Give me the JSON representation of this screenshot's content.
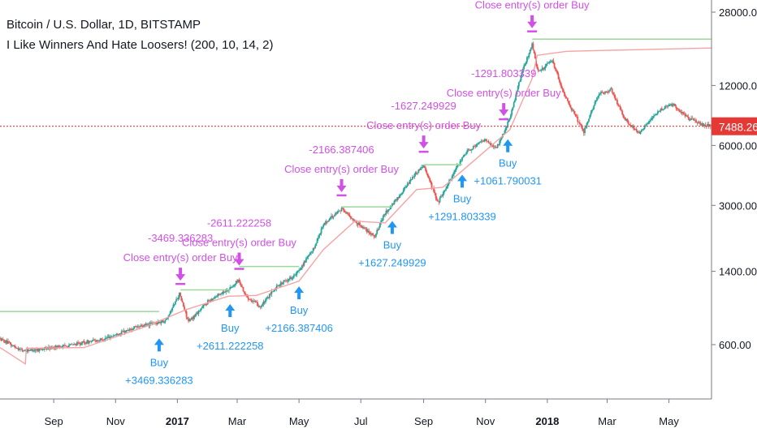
{
  "chart_data": {
    "type": "candlestick",
    "title": "Bitcoin / U.S. Dollar, 1D, BITSTAMP",
    "indicator": "I Like Winners And Hate Loosers! (200, 10, 14, 2)",
    "y_axis": {
      "scale": "log",
      "ticks": [
        "28000.00",
        "12000.00",
        "6000.00",
        "3000.00",
        "1400.00",
        "600.00"
      ],
      "tick_values": [
        28000,
        12000,
        6000,
        3000,
        1400,
        600
      ]
    },
    "x_axis": {
      "ticks": [
        "Sep",
        "Nov",
        "2017",
        "Mar",
        "May",
        "Jul",
        "Sep",
        "Nov",
        "2018",
        "Mar",
        "May"
      ],
      "bold_ticks": [
        "2017",
        "2018"
      ],
      "range": [
        "2016-07-10",
        "2018-06-12"
      ],
      "tick_dates": [
        "2016-09-01",
        "2016-11-01",
        "2017-01-01",
        "2017-03-01",
        "2017-05-01",
        "2017-07-01",
        "2017-09-01",
        "2017-11-01",
        "2018-01-01",
        "2018-03-01",
        "2018-05-01"
      ]
    },
    "price_line": {
      "value": 7488.26,
      "label": "7488.26"
    },
    "price_path": [
      [
        "2016-07-10",
        640
      ],
      [
        "2016-08-01",
        560
      ],
      [
        "2016-08-20",
        570
      ],
      [
        "2016-09-20",
        600
      ],
      [
        "2016-10-20",
        640
      ],
      [
        "2016-11-20",
        730
      ],
      [
        "2016-12-20",
        790
      ],
      [
        "2017-01-03",
        1080
      ],
      [
        "2017-01-12",
        780
      ],
      [
        "2017-02-01",
        1000
      ],
      [
        "2017-02-25",
        1180
      ],
      [
        "2017-03-02",
        1270
      ],
      [
        "2017-03-10",
        1050
      ],
      [
        "2017-03-24",
        930
      ],
      [
        "2017-04-10",
        1190
      ],
      [
        "2017-04-28",
        1350
      ],
      [
        "2017-05-15",
        1800
      ],
      [
        "2017-05-25",
        2400
      ],
      [
        "2017-06-12",
        2900
      ],
      [
        "2017-06-25",
        2500
      ],
      [
        "2017-07-15",
        2100
      ],
      [
        "2017-07-24",
        2700
      ],
      [
        "2017-08-05",
        3200
      ],
      [
        "2017-08-20",
        4100
      ],
      [
        "2017-09-01",
        4800
      ],
      [
        "2017-09-15",
        3100
      ],
      [
        "2017-09-30",
        4300
      ],
      [
        "2017-10-13",
        5600
      ],
      [
        "2017-10-31",
        6400
      ],
      [
        "2017-11-12",
        5800
      ],
      [
        "2017-11-25",
        8200
      ],
      [
        "2017-12-07",
        14000
      ],
      [
        "2017-12-17",
        19300
      ],
      [
        "2017-12-23",
        14000
      ],
      [
        "2018-01-06",
        16000
      ],
      [
        "2018-01-17",
        11000
      ],
      [
        "2018-02-06",
        7000
      ],
      [
        "2018-02-20",
        10800
      ],
      [
        "2018-03-05",
        11400
      ],
      [
        "2018-03-18",
        8200
      ],
      [
        "2018-04-01",
        6900
      ],
      [
        "2018-04-24",
        9200
      ],
      [
        "2018-05-05",
        9700
      ],
      [
        "2018-05-20",
        8200
      ],
      [
        "2018-06-05",
        7600
      ],
      [
        "2018-06-12",
        7488
      ]
    ],
    "support_line": [
      [
        "2016-07-10",
        580
      ],
      [
        "2016-08-04",
        480
      ],
      [
        "2016-08-05",
        575
      ],
      [
        "2016-10-01",
        580
      ],
      [
        "2016-12-01",
        740
      ],
      [
        "2017-01-10",
        900
      ],
      [
        "2017-02-20",
        1050
      ],
      [
        "2017-03-20",
        1060
      ],
      [
        "2017-05-01",
        1250
      ],
      [
        "2017-05-25",
        1800
      ],
      [
        "2017-06-25",
        2500
      ],
      [
        "2017-07-25",
        2450
      ],
      [
        "2017-08-25",
        3600
      ],
      [
        "2017-09-20",
        3700
      ],
      [
        "2017-10-20",
        5000
      ],
      [
        "2017-11-25",
        7200
      ],
      [
        "2017-12-17",
        13000
      ],
      [
        "2017-12-22",
        17000
      ],
      [
        "2018-01-20",
        17800
      ],
      [
        "2018-03-01",
        18000
      ],
      [
        "2018-06-12",
        18500
      ]
    ],
    "series": [
      {
        "name": "Buy",
        "x": [
          "2016-12-14",
          "2017-02-22",
          "2017-05-01",
          "2017-08-01",
          "2017-10-09",
          "2017-11-23"
        ],
        "values": [
          "+3469.336283",
          "+2611.222258",
          "+2166.387406",
          "+1627.249929",
          "+1291.803339",
          "+1061.790031"
        ]
      },
      {
        "name": "Close entry(s) order Buy",
        "x": [
          "2017-01-04",
          "2017-03-03",
          "2017-06-12",
          "2017-09-01",
          "2017-11-19",
          "2017-12-17"
        ],
        "values": [
          "-3469.336283",
          "-2611.222258",
          "-2166.387406",
          "-1627.249929",
          "-1291.803339",
          ""
        ]
      }
    ],
    "targets": [
      {
        "from": "2016-07-10",
        "to": "2016-12-14",
        "value": 880
      },
      {
        "from": "2017-01-04",
        "to": "2017-02-22",
        "value": 1130
      },
      {
        "from": "2017-03-03",
        "to": "2017-05-01",
        "value": 1480
      },
      {
        "from": "2017-06-12",
        "to": "2017-08-01",
        "value": 2950
      },
      {
        "from": "2017-09-01",
        "to": "2017-10-09",
        "value": 4800
      },
      {
        "from": "2017-11-19",
        "to": "2017-11-23",
        "value": 8200
      },
      {
        "from": "2017-12-17",
        "to": "2018-06-12",
        "value": 20500
      }
    ]
  },
  "colors": {
    "up": "#26a69a",
    "down": "#ef5350",
    "buy": "#2196f3",
    "close": "#d150e6",
    "support": "#f5a3a3",
    "target": "#9bd89b",
    "priceline": "#e53935"
  }
}
